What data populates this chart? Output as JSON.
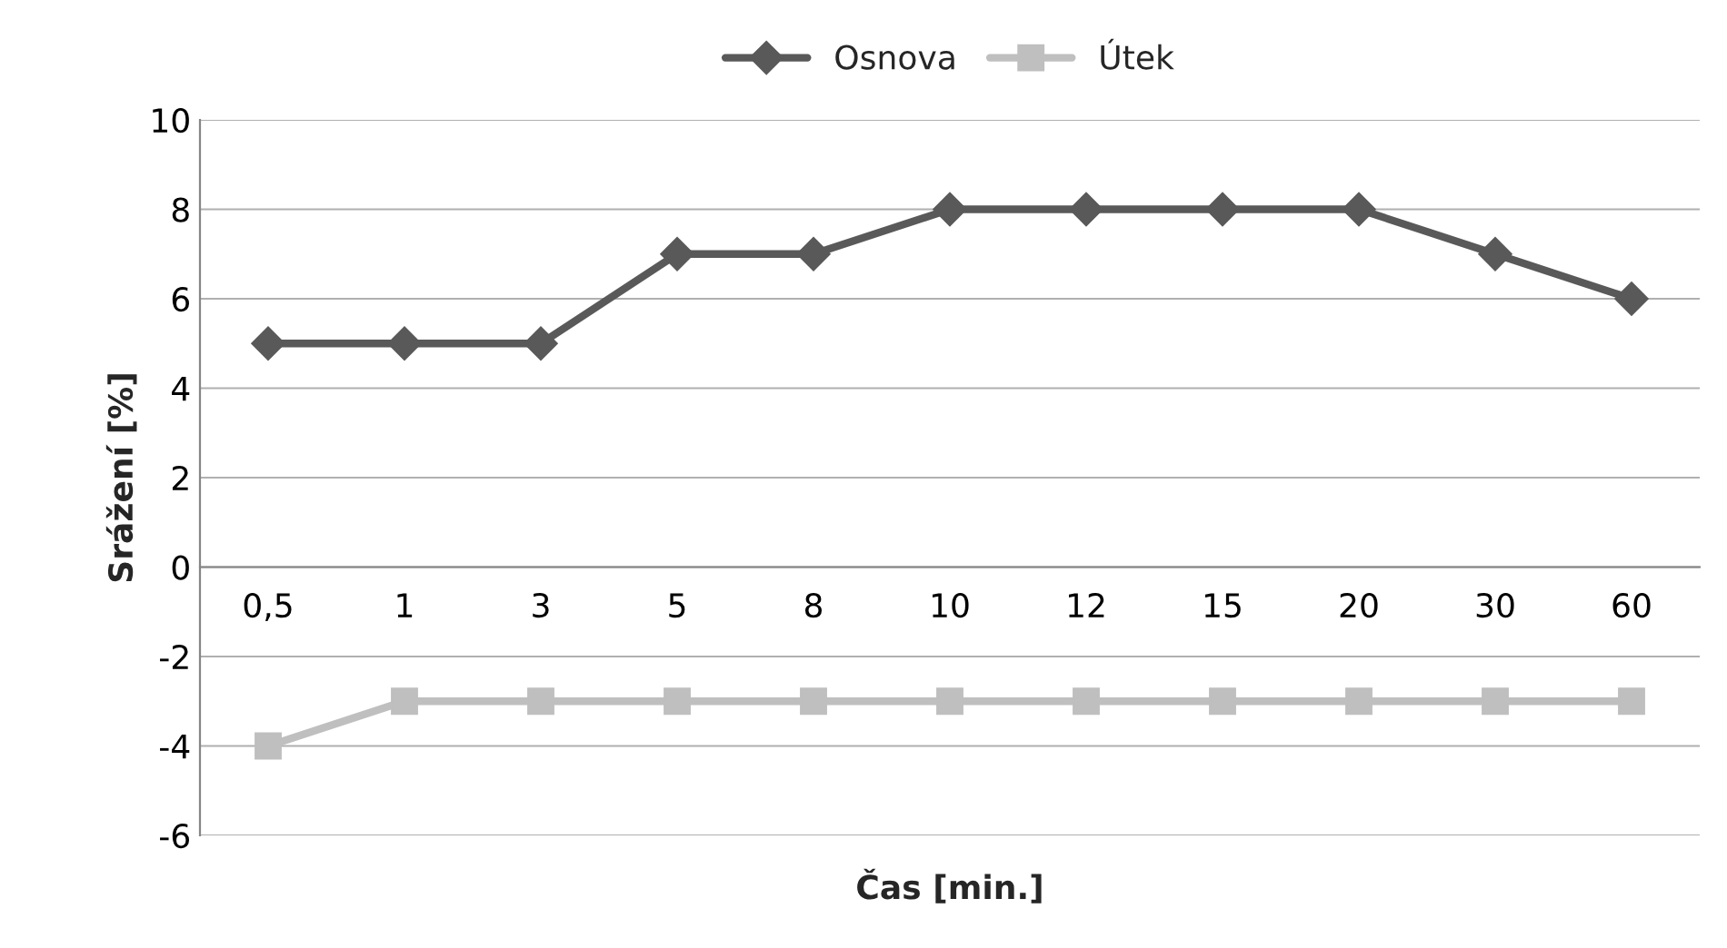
{
  "chart_data": {
    "type": "line",
    "xlabel": "Čas [min.]",
    "ylabel": "Srážení [%]",
    "categories": [
      "0,5",
      "1",
      "3",
      "5",
      "8",
      "10",
      "12",
      "15",
      "20",
      "30",
      "60"
    ],
    "series": [
      {
        "name": "Osnova",
        "color": "#595959",
        "marker": "diamond",
        "values": [
          5,
          5,
          5,
          7,
          7,
          8,
          8,
          8,
          8,
          7,
          6
        ]
      },
      {
        "name": "Útek",
        "color": "#bfbfbf",
        "marker": "square",
        "values": [
          -4,
          -3,
          -3,
          -3,
          -3,
          -3,
          -3,
          -3,
          -3,
          -3,
          -3
        ]
      }
    ],
    "ylim": [
      -6,
      10
    ],
    "yticks": [
      -6,
      -4,
      -2,
      0,
      2,
      4,
      6,
      8,
      10
    ],
    "grid": "y",
    "legend": "top",
    "line_style": "solid"
  }
}
